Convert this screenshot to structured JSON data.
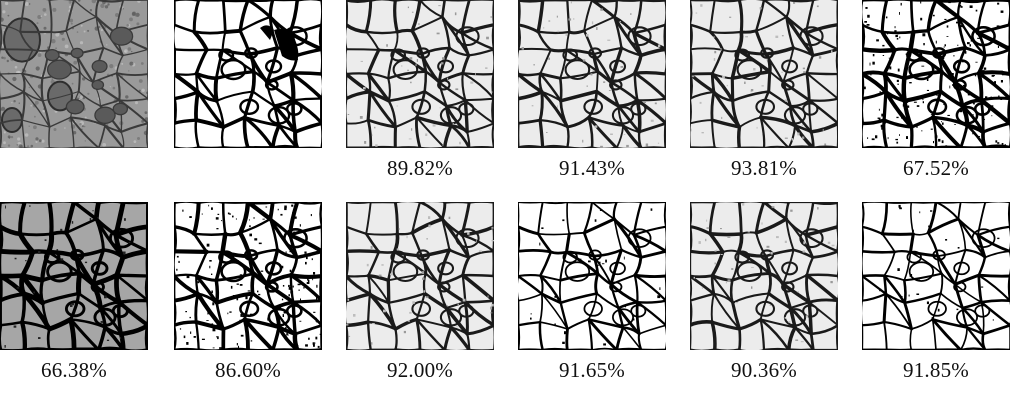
{
  "figure": {
    "rows": [
      {
        "cells": [
          {
            "kind": "em-input",
            "caption": ""
          },
          {
            "kind": "ground-truth",
            "caption": ""
          },
          {
            "kind": "soft-gray",
            "caption": "89.82%"
          },
          {
            "kind": "soft-gray",
            "caption": "91.43%"
          },
          {
            "kind": "soft-gray",
            "caption": "93.81%"
          },
          {
            "kind": "noisy-binary",
            "caption": "67.52%"
          }
        ]
      },
      {
        "cells": [
          {
            "kind": "gray-background",
            "caption": "66.38%"
          },
          {
            "kind": "noisy-binary",
            "caption": "86.60%"
          },
          {
            "kind": "soft-gray",
            "caption": "92.00%"
          },
          {
            "kind": "clean-binary",
            "caption": "91.65%"
          },
          {
            "kind": "soft-gray",
            "caption": "90.36%"
          },
          {
            "kind": "clean-binary",
            "caption": "91.85%"
          }
        ]
      }
    ]
  }
}
